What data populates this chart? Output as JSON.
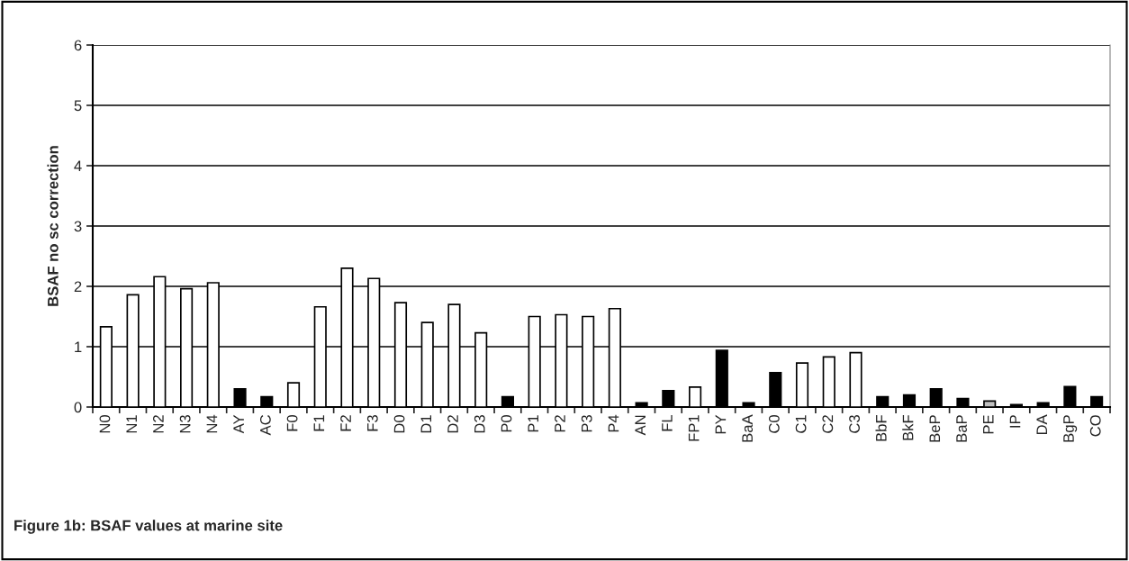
{
  "chart_data": {
    "type": "bar",
    "title": "Figure 1b: BSAF values at marine site",
    "ylabel": "BSAF no sc correction",
    "categories": [
      "N0",
      "N1",
      "N2",
      "N3",
      "N4",
      "AY",
      "AC",
      "F0",
      "F1",
      "F2",
      "F3",
      "D0",
      "D1",
      "D2",
      "D3",
      "P0",
      "P1",
      "P2",
      "P3",
      "P4",
      "AN",
      "FL",
      "FP1",
      "PY",
      "BaA",
      "C0",
      "C1",
      "C2",
      "C3",
      "BbF",
      "BkF",
      "BeP",
      "BaP",
      "PE",
      "IP",
      "DA",
      "BgP",
      "CO"
    ],
    "values": [
      1.33,
      1.86,
      2.16,
      1.96,
      2.06,
      0.3,
      0.17,
      0.4,
      1.66,
      2.3,
      2.13,
      1.73,
      1.4,
      1.7,
      1.23,
      0.17,
      1.5,
      1.53,
      1.5,
      1.63,
      0.07,
      0.27,
      0.33,
      0.94,
      0.07,
      0.57,
      0.73,
      0.83,
      0.9,
      0.17,
      0.2,
      0.3,
      0.14,
      0.1,
      0.04,
      0.07,
      0.34,
      0.17
    ],
    "colors": [
      "#ffffff",
      "#ffffff",
      "#ffffff",
      "#ffffff",
      "#ffffff",
      "#000000",
      "#000000",
      "#ffffff",
      "#ffffff",
      "#ffffff",
      "#ffffff",
      "#ffffff",
      "#ffffff",
      "#ffffff",
      "#ffffff",
      "#000000",
      "#ffffff",
      "#ffffff",
      "#ffffff",
      "#ffffff",
      "#000000",
      "#000000",
      "#ffffff",
      "#000000",
      "#000000",
      "#000000",
      "#ffffff",
      "#ffffff",
      "#ffffff",
      "#000000",
      "#000000",
      "#000000",
      "#000000",
      "#c0c0c0",
      "#000000",
      "#000000",
      "#000000",
      "#000000"
    ],
    "ylim": [
      0,
      6
    ],
    "yticks": [
      0,
      1,
      2,
      3,
      4,
      5,
      6
    ],
    "grid": "y"
  }
}
